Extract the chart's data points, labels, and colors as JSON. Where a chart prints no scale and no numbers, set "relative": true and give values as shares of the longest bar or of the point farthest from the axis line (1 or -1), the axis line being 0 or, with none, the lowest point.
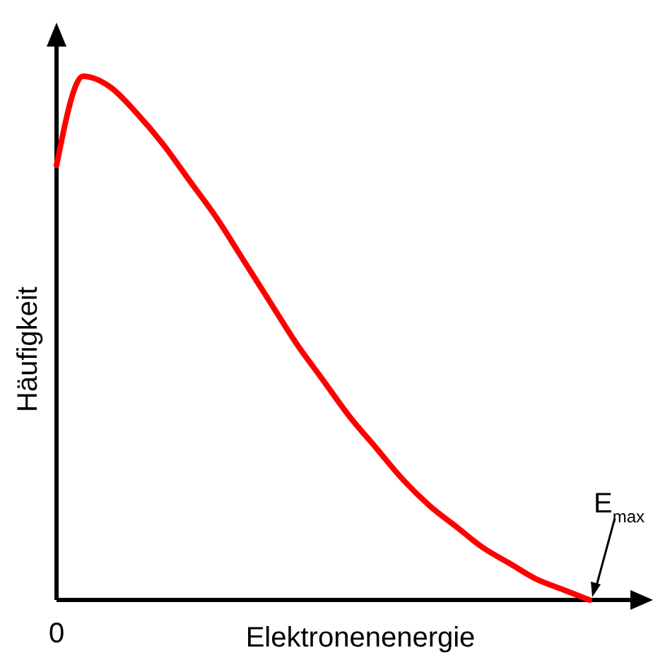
{
  "chart_data": {
    "type": "line",
    "relative": true,
    "xlabel": "Elektronenenergie",
    "ylabel": "Häufigkeit",
    "categories": [
      null,
      null,
      null,
      null,
      null,
      null,
      null,
      null,
      null,
      null,
      null,
      null,
      null,
      null,
      null,
      null,
      null,
      null,
      null,
      null,
      null
    ],
    "series": [
      {
        "color": "#ff0000",
        "values": [
          0.83,
          1.0,
          0.98,
          0.93,
          0.87,
          0.8,
          0.73,
          0.65,
          0.57,
          0.49,
          0.42,
          0.35,
          0.29,
          0.23,
          0.18,
          0.14,
          0.1,
          0.07,
          0.04,
          0.02,
          0.0
        ]
      }
    ],
    "annotations": [
      "0",
      "E$_{max}$"
    ],
    "line_style": "solid"
  }
}
